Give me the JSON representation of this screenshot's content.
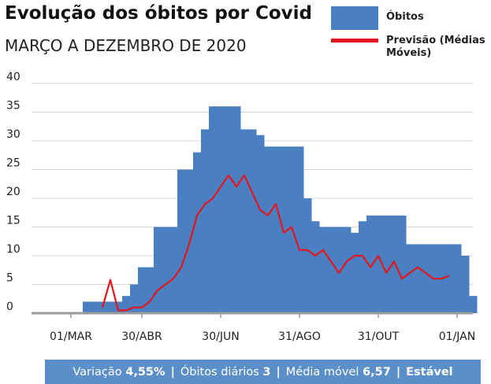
{
  "chart_data": {
    "type": "step-area-line",
    "title": "Evolução dos óbitos por Covid",
    "subtitle": "MARÇO A DEZEMBRO DE 2020",
    "categories": [
      null,
      null,
      null,
      null,
      null,
      "01/MAR",
      null,
      null,
      null,
      null,
      null,
      null,
      null,
      null,
      "30/ABR",
      null,
      null,
      null,
      null,
      null,
      null,
      null,
      null,
      null,
      "30/JUN",
      null,
      null,
      null,
      null,
      null,
      null,
      null,
      null,
      null,
      "31/AGO",
      null,
      null,
      null,
      null,
      null,
      null,
      null,
      null,
      null,
      "31/OUT",
      null,
      null,
      null,
      null,
      null,
      null,
      null,
      null,
      null,
      "01/JAN",
      null,
      null
    ],
    "series": [
      {
        "name": "Óbitos",
        "color": "#4a7fc1",
        "kind": "step-area",
        "values": [
          0,
          0,
          0,
          0,
          0,
          0,
          0,
          2,
          2,
          2,
          2,
          2,
          3,
          5,
          8,
          8,
          15,
          15,
          15,
          25,
          25,
          28,
          32,
          36,
          36,
          36,
          36,
          32,
          32,
          31,
          29,
          29,
          29,
          29,
          29,
          20,
          16,
          15,
          15,
          15,
          15,
          14,
          16,
          17,
          17,
          17,
          17,
          17,
          12,
          12,
          12,
          12,
          12,
          12,
          12,
          10,
          3
        ]
      },
      {
        "name": "Previsão (Médias Móveis)",
        "color": "#e3161e",
        "kind": "line",
        "values": [
          null,
          null,
          null,
          null,
          null,
          null,
          null,
          null,
          null,
          1,
          5.8,
          0.5,
          0.5,
          1,
          1,
          2,
          4,
          5,
          6,
          8,
          12,
          17,
          19,
          20,
          22,
          24,
          22,
          24,
          21,
          18,
          17,
          19,
          14,
          15,
          11,
          11,
          10,
          11,
          9,
          7,
          9,
          10,
          10,
          8,
          10,
          7,
          9,
          6,
          7,
          8,
          7,
          6,
          6,
          6.5,
          null,
          null,
          null
        ]
      }
    ],
    "ylim": [
      0,
      40
    ],
    "yticks": [
      0,
      5,
      10,
      15,
      20,
      25,
      30,
      35,
      40
    ],
    "grid": true,
    "footer": {
      "separator": "|",
      "items": [
        {
          "label": "Variação",
          "value": "4,55%"
        },
        {
          "label": "Óbitos diários",
          "value": "3"
        },
        {
          "label": "Média móvel",
          "value": "6,57"
        }
      ],
      "status": "Estável"
    }
  }
}
